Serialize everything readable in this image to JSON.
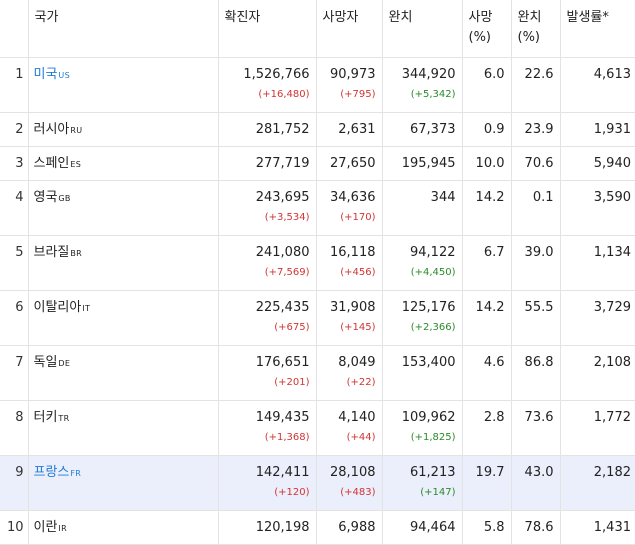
{
  "header": {
    "rank": "",
    "country": "국가",
    "cases": "확진자",
    "deaths": "사망자",
    "recovered": "완치",
    "death_rate": [
      "사망",
      "(%)"
    ],
    "recovery_rate": [
      "완치",
      "(%)"
    ],
    "incidence": "발생률*"
  },
  "rows": [
    {
      "rank": "1",
      "name": "미국",
      "code": "US",
      "link": true,
      "selected": false,
      "cases": "1,526,766",
      "cases_delta": "(+16,480)",
      "deaths": "90,973",
      "deaths_delta": "(+795)",
      "recovered": "344,920",
      "recovered_delta": "(+5,342)",
      "death_rate": "6.0",
      "recovery_rate": "22.6",
      "incidence": "4,613"
    },
    {
      "rank": "2",
      "name": "러시아",
      "code": "RU",
      "link": false,
      "selected": false,
      "cases": "281,752",
      "cases_delta": "",
      "deaths": "2,631",
      "deaths_delta": "",
      "recovered": "67,373",
      "recovered_delta": "",
      "death_rate": "0.9",
      "recovery_rate": "23.9",
      "incidence": "1,931"
    },
    {
      "rank": "3",
      "name": "스페인",
      "code": "ES",
      "link": false,
      "selected": false,
      "cases": "277,719",
      "cases_delta": "",
      "deaths": "27,650",
      "deaths_delta": "",
      "recovered": "195,945",
      "recovered_delta": "",
      "death_rate": "10.0",
      "recovery_rate": "70.6",
      "incidence": "5,940"
    },
    {
      "rank": "4",
      "name": "영국",
      "code": "GB",
      "link": false,
      "selected": false,
      "cases": "243,695",
      "cases_delta": "(+3,534)",
      "deaths": "34,636",
      "deaths_delta": "(+170)",
      "recovered": "344",
      "recovered_delta": "",
      "death_rate": "14.2",
      "recovery_rate": "0.1",
      "incidence": "3,590"
    },
    {
      "rank": "5",
      "name": "브라질",
      "code": "BR",
      "link": false,
      "selected": false,
      "cases": "241,080",
      "cases_delta": "(+7,569)",
      "deaths": "16,118",
      "deaths_delta": "(+456)",
      "recovered": "94,122",
      "recovered_delta": "(+4,450)",
      "death_rate": "6.7",
      "recovery_rate": "39.0",
      "incidence": "1,134"
    },
    {
      "rank": "6",
      "name": "이탈리아",
      "code": "IT",
      "link": false,
      "selected": false,
      "cases": "225,435",
      "cases_delta": "(+675)",
      "deaths": "31,908",
      "deaths_delta": "(+145)",
      "recovered": "125,176",
      "recovered_delta": "(+2,366)",
      "death_rate": "14.2",
      "recovery_rate": "55.5",
      "incidence": "3,729"
    },
    {
      "rank": "7",
      "name": "독일",
      "code": "DE",
      "link": false,
      "selected": false,
      "cases": "176,651",
      "cases_delta": "(+201)",
      "deaths": "8,049",
      "deaths_delta": "(+22)",
      "recovered": "153,400",
      "recovered_delta": "",
      "death_rate": "4.6",
      "recovery_rate": "86.8",
      "incidence": "2,108"
    },
    {
      "rank": "8",
      "name": "터키",
      "code": "TR",
      "link": false,
      "selected": false,
      "cases": "149,435",
      "cases_delta": "(+1,368)",
      "deaths": "4,140",
      "deaths_delta": "(+44)",
      "recovered": "109,962",
      "recovered_delta": "(+1,825)",
      "death_rate": "2.8",
      "recovery_rate": "73.6",
      "incidence": "1,772"
    },
    {
      "rank": "9",
      "name": "프랑스",
      "code": "FR",
      "link": true,
      "selected": true,
      "cases": "142,411",
      "cases_delta": "(+120)",
      "deaths": "28,108",
      "deaths_delta": "(+483)",
      "recovered": "61,213",
      "recovered_delta": "(+147)",
      "death_rate": "19.7",
      "recovery_rate": "43.0",
      "incidence": "2,182"
    },
    {
      "rank": "10",
      "name": "이란",
      "code": "IR",
      "link": false,
      "selected": false,
      "cases": "120,198",
      "cases_delta": "",
      "deaths": "6,988",
      "deaths_delta": "",
      "recovered": "94,464",
      "recovered_delta": "",
      "death_rate": "5.8",
      "recovery_rate": "78.6",
      "incidence": "1,431"
    }
  ],
  "colors": {
    "link": "#1f7bd8",
    "increase": "#d33434",
    "recovered_increase": "#2a8b2a",
    "selected_row": "#ebeefb"
  }
}
